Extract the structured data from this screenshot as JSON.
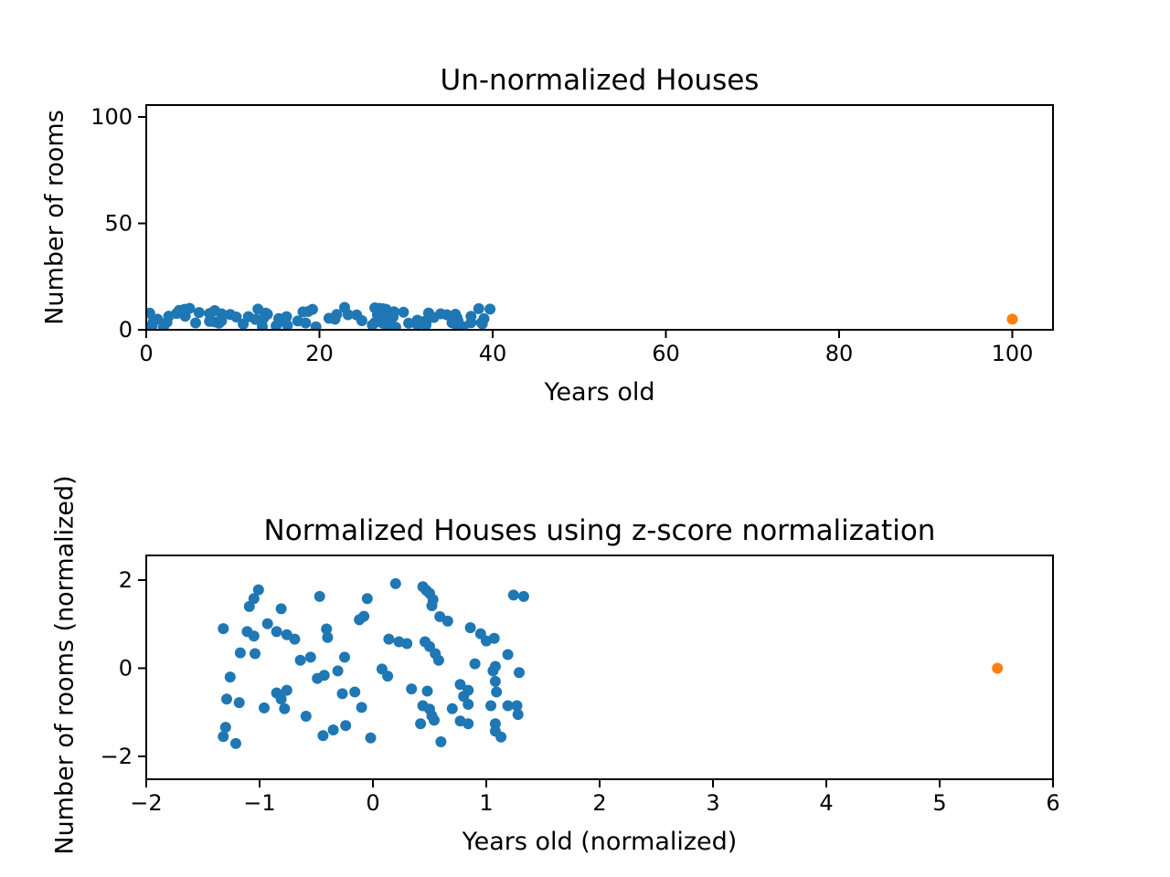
{
  "colors": {
    "blue": "#1f77b4",
    "orange": "#ff7f0e",
    "axis": "#000000",
    "background": "#ffffff"
  },
  "chart_data": [
    {
      "type": "scatter",
      "title": "Un-normalized Houses",
      "xlabel": "Years old",
      "ylabel": "Number of rooms",
      "xlim": [
        0,
        104.7
      ],
      "ylim": [
        0,
        105.6
      ],
      "xticks": [
        0,
        20,
        40,
        60,
        80,
        100
      ],
      "yticks": [
        0,
        50,
        100
      ],
      "grid": false,
      "legend": false,
      "series": [
        {
          "name": "houses",
          "color": "#1f77b4",
          "points": [
            [
              0.4,
              7.8
            ],
            [
              5.0,
              10.1
            ],
            [
              4.4,
              9.6
            ],
            [
              3.8,
              9.1
            ],
            [
              7.9,
              9.0
            ],
            [
              12.9,
              9.7
            ],
            [
              19.2,
              9.6
            ],
            [
              18.7,
              8.6
            ],
            [
              18.1,
              8.4
            ],
            [
              22.9,
              10.5
            ],
            [
              3.5,
              7.7
            ],
            [
              4.4,
              7.4
            ],
            [
              6.1,
              8.1
            ],
            [
              7.3,
              7.7
            ],
            [
              8.7,
              7.5
            ],
            [
              9.7,
              7.2
            ],
            [
              2.6,
              6.4
            ],
            [
              4.5,
              6.4
            ],
            [
              13.8,
              7.8
            ],
            [
              14.0,
              7.3
            ],
            [
              10.4,
              6.0
            ],
            [
              11.8,
              6.2
            ],
            [
              16.2,
              6.2
            ],
            [
              15.3,
              5.3
            ],
            [
              13.5,
              5.1
            ],
            [
              12.6,
              4.9
            ],
            [
              1.3,
              5.0
            ],
            [
              0.8,
              3.7
            ],
            [
              2.4,
              3.5
            ],
            [
              0.7,
              2.0
            ],
            [
              0.4,
              1.5
            ],
            [
              2.0,
              1.1
            ],
            [
              5.7,
              3.2
            ],
            [
              7.3,
              4.0
            ],
            [
              7.9,
              3.7
            ],
            [
              8.4,
              3.1
            ],
            [
              8.7,
              4.2
            ],
            [
              11.2,
              2.7
            ],
            [
              13.4,
              1.5
            ],
            [
              15.0,
              1.9
            ],
            [
              16.3,
              2.1
            ],
            [
              15.9,
              4.0
            ],
            [
              17.5,
              4.1
            ],
            [
              18.4,
              3.2
            ],
            [
              19.6,
              1.4
            ],
            [
              21.1,
              5.4
            ],
            [
              21.8,
              5.0
            ],
            [
              26.4,
              10.3
            ],
            [
              26.9,
              10.1
            ],
            [
              27.3,
              9.9
            ],
            [
              27.7,
              9.6
            ],
            [
              27.6,
              9.2
            ],
            [
              28.6,
              8.5
            ],
            [
              29.7,
              8.3
            ],
            [
              38.4,
              9.9
            ],
            [
              39.7,
              9.7
            ],
            [
              32.6,
              7.9
            ],
            [
              34.0,
              7.5
            ],
            [
              34.7,
              7.1
            ],
            [
              35.7,
              7.3
            ],
            [
              22.0,
              7.2
            ],
            [
              23.3,
              7.1
            ],
            [
              24.3,
              7.0
            ],
            [
              26.7,
              7.1
            ],
            [
              27.3,
              6.8
            ],
            [
              28.0,
              6.4
            ],
            [
              28.5,
              6.0
            ],
            [
              37.5,
              6.3
            ],
            [
              33.2,
              5.8
            ],
            [
              35.9,
              5.6
            ],
            [
              35.6,
              5.3
            ],
            [
              35.9,
              4.7
            ],
            [
              39.0,
              5.2
            ],
            [
              24.9,
              4.3
            ],
            [
              27.0,
              4.1
            ],
            [
              31.3,
              4.5
            ],
            [
              32.3,
              4.2
            ],
            [
              31.7,
              3.8
            ],
            [
              36.0,
              4.1
            ],
            [
              26.4,
              3.3
            ],
            [
              27.3,
              3.1
            ],
            [
              30.3,
              3.1
            ],
            [
              32.3,
              3.4
            ],
            [
              35.3,
              3.3
            ],
            [
              37.5,
              3.3
            ],
            [
              38.7,
              3.3
            ],
            [
              38.8,
              2.8
            ],
            [
              26.1,
              2.2
            ],
            [
              27.9,
              2.4
            ],
            [
              27.6,
              2.7
            ],
            [
              31.3,
              2.4
            ],
            [
              32.3,
              2.2
            ],
            [
              35.9,
              2.2
            ],
            [
              35.9,
              1.8
            ],
            [
              36.6,
              1.4
            ],
            [
              28.8,
              1.2
            ]
          ]
        },
        {
          "name": "outlier-house",
          "color": "#ff7f0e",
          "points": [
            [
              100,
              5
            ]
          ]
        }
      ]
    },
    {
      "type": "scatter",
      "title": "Normalized Houses using z-score normalization",
      "xlabel": "Years old (normalized)",
      "ylabel": "Number of rooms (normalized)",
      "xlim": [
        -2,
        6
      ],
      "ylim": [
        -2.52,
        2.56
      ],
      "xticks": [
        -2,
        -1,
        0,
        1,
        2,
        3,
        4,
        5,
        6
      ],
      "yticks": [
        -2,
        0,
        2
      ],
      "grid": false,
      "legend": false,
      "series": [
        {
          "name": "houses-normalized",
          "color": "#1f77b4",
          "points": [
            [
              -1.32,
              0.9
            ],
            [
              -1.01,
              1.78
            ],
            [
              -1.05,
              1.58
            ],
            [
              -1.09,
              1.4
            ],
            [
              -0.81,
              1.35
            ],
            [
              -0.47,
              1.63
            ],
            [
              -0.05,
              1.58
            ],
            [
              -0.08,
              1.18
            ],
            [
              -0.12,
              1.1
            ],
            [
              0.2,
              1.92
            ],
            [
              -1.11,
              0.83
            ],
            [
              -1.05,
              0.73
            ],
            [
              -0.93,
              1.01
            ],
            [
              -0.85,
              0.83
            ],
            [
              -0.76,
              0.76
            ],
            [
              -0.69,
              0.66
            ],
            [
              -1.17,
              0.35
            ],
            [
              -1.04,
              0.33
            ],
            [
              -0.41,
              0.89
            ],
            [
              -0.4,
              0.7
            ],
            [
              -0.64,
              0.18
            ],
            [
              -0.55,
              0.25
            ],
            [
              -0.25,
              0.25
            ],
            [
              -0.31,
              -0.06
            ],
            [
              -0.43,
              -0.16
            ],
            [
              -0.49,
              -0.23
            ],
            [
              -1.26,
              -0.2
            ],
            [
              -1.29,
              -0.7
            ],
            [
              -1.18,
              -0.78
            ],
            [
              -1.3,
              -1.34
            ],
            [
              -1.32,
              -1.55
            ],
            [
              -1.21,
              -1.71
            ],
            [
              -0.96,
              -0.9
            ],
            [
              -0.85,
              -0.56
            ],
            [
              -0.81,
              -0.7
            ],
            [
              -0.78,
              -0.92
            ],
            [
              -0.76,
              -0.5
            ],
            [
              -0.59,
              -1.09
            ],
            [
              -0.44,
              -1.53
            ],
            [
              -0.35,
              -1.4
            ],
            [
              -0.24,
              -1.3
            ],
            [
              -0.27,
              -0.58
            ],
            [
              -0.16,
              -0.54
            ],
            [
              -0.1,
              -0.89
            ],
            [
              -0.02,
              -1.58
            ],
            [
              0.08,
              -0.02
            ],
            [
              0.13,
              -0.18
            ],
            [
              0.44,
              1.85
            ],
            [
              0.47,
              1.77
            ],
            [
              0.5,
              1.7
            ],
            [
              0.53,
              1.56
            ],
            [
              0.52,
              1.42
            ],
            [
              0.59,
              1.17
            ],
            [
              0.66,
              1.07
            ],
            [
              1.24,
              1.66
            ],
            [
              1.33,
              1.63
            ],
            [
              0.86,
              0.92
            ],
            [
              0.95,
              0.78
            ],
            [
              1.0,
              0.62
            ],
            [
              1.07,
              0.68
            ],
            [
              0.14,
              0.66
            ],
            [
              0.23,
              0.6
            ],
            [
              0.3,
              0.56
            ],
            [
              0.46,
              0.6
            ],
            [
              0.5,
              0.49
            ],
            [
              0.55,
              0.33
            ],
            [
              0.58,
              0.18
            ],
            [
              1.19,
              0.31
            ],
            [
              0.9,
              0.1
            ],
            [
              1.08,
              0.04
            ],
            [
              1.06,
              -0.06
            ],
            [
              1.08,
              -0.3
            ],
            [
              1.29,
              -0.1
            ],
            [
              0.34,
              -0.47
            ],
            [
              0.48,
              -0.52
            ],
            [
              0.77,
              -0.37
            ],
            [
              0.84,
              -0.5
            ],
            [
              0.8,
              -0.64
            ],
            [
              1.09,
              -0.54
            ],
            [
              0.44,
              -0.85
            ],
            [
              0.5,
              -0.93
            ],
            [
              0.7,
              -0.92
            ],
            [
              0.84,
              -0.82
            ],
            [
              1.04,
              -0.85
            ],
            [
              1.19,
              -0.85
            ],
            [
              1.27,
              -0.85
            ],
            [
              1.28,
              -1.05
            ],
            [
              0.42,
              -1.26
            ],
            [
              0.54,
              -1.18
            ],
            [
              0.52,
              -1.08
            ],
            [
              0.77,
              -1.2
            ],
            [
              0.84,
              -1.26
            ],
            [
              1.08,
              -1.26
            ],
            [
              1.08,
              -1.43
            ],
            [
              1.13,
              -1.56
            ],
            [
              0.6,
              -1.67
            ]
          ]
        },
        {
          "name": "outlier-house-normalized",
          "color": "#ff7f0e",
          "points": [
            [
              5.51,
              0.0
            ]
          ]
        }
      ]
    }
  ]
}
